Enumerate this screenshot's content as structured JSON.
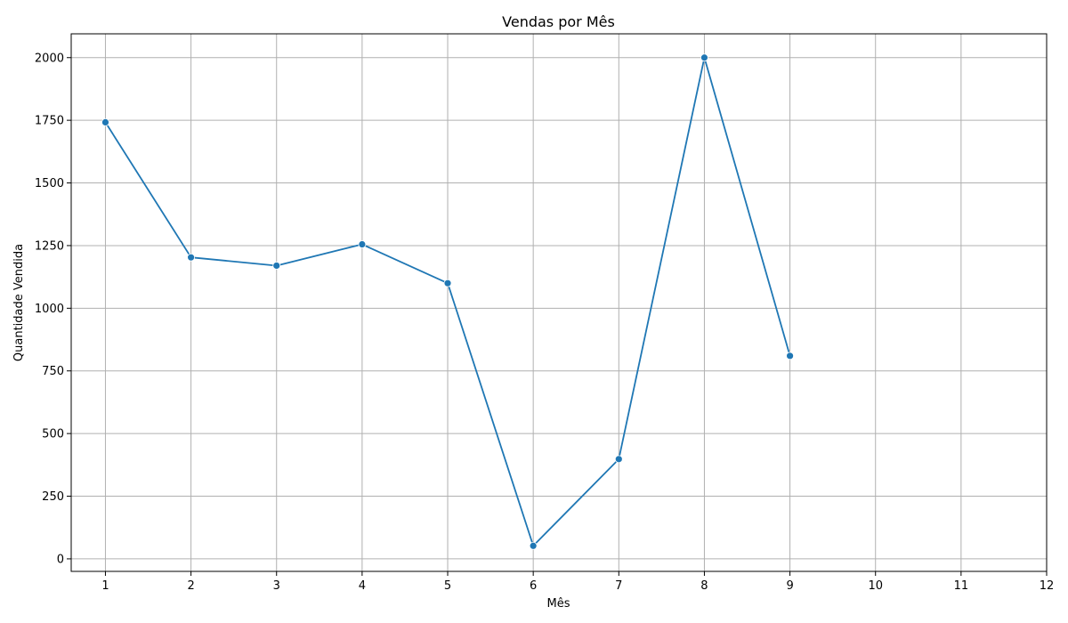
{
  "chart_data": {
    "type": "line",
    "title": "Vendas por Mês",
    "xlabel": "Mês",
    "ylabel": "Quantidade Vendida",
    "x": [
      1,
      2,
      3,
      4,
      5,
      6,
      7,
      8,
      9
    ],
    "series": [
      {
        "values": [
          1742,
          1203,
          1170,
          1255,
          1100,
          52,
          398,
          2000,
          810
        ]
      }
    ],
    "xticks": [
      1,
      2,
      3,
      4,
      5,
      6,
      7,
      8,
      9,
      10,
      11,
      12
    ],
    "yticks": [
      0,
      250,
      500,
      750,
      1000,
      1250,
      1500,
      1750,
      2000
    ],
    "xlim": [
      0.6,
      12
    ],
    "ylim": [
      -50,
      2095
    ],
    "grid": true,
    "marker": "circle",
    "colors": {
      "line": "#1f77b4",
      "grid": "#b0b0b0",
      "axis": "#000000"
    }
  }
}
